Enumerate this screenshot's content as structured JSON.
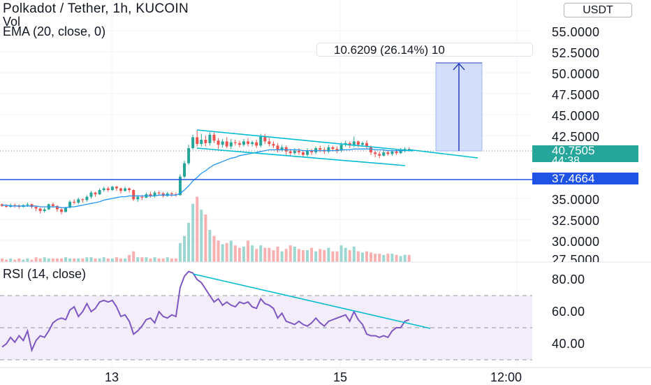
{
  "legend": {
    "title": "Polkadot / Tether, 1h, KUCOIN",
    "vol": "Vol",
    "ema": "EMA (20, close, 0)"
  },
  "rsi_legend": "RSI (14, close)",
  "currency_button": "USDT",
  "price_axis": [
    "55.0000",
    "52.5000",
    "50.0000",
    "47.5000",
    "45.0000",
    "42.5000",
    "35.0000",
    "32.5000",
    "30.0000",
    "27.5000"
  ],
  "rsi_axis": [
    "80.00",
    "60.00",
    "40.00"
  ],
  "time_axis": [
    "13",
    "15",
    "12:00"
  ],
  "last_price": {
    "value": "40.7505",
    "countdown": "44:38"
  },
  "horizontal_level": "37.4664",
  "measure": {
    "label": "10.6209 (26.14%) 10"
  },
  "colors": {
    "up": "#26a69a",
    "down": "#ef5350",
    "ema": "#2196f3",
    "trendline": "#00bcd4",
    "level": "#1e53e5",
    "rsi": "#7e57c2",
    "measure_fill": "#cfdcfa"
  },
  "chart_data": {
    "type": "candlestick",
    "title": "Polkadot / Tether, 1h, KUCOIN",
    "y_range": [
      27.5,
      57.5
    ],
    "candles": [
      [
        34.3,
        34.1,
        34.4,
        34.0
      ],
      [
        34.1,
        34.0,
        34.3,
        33.9
      ],
      [
        34.0,
        34.2,
        34.4,
        33.9
      ],
      [
        34.2,
        34.1,
        34.4,
        33.9
      ],
      [
        34.1,
        34.0,
        34.3,
        33.8
      ],
      [
        34.0,
        34.2,
        34.3,
        33.9
      ],
      [
        34.2,
        34.3,
        34.5,
        34.0
      ],
      [
        34.3,
        34.0,
        34.4,
        33.8
      ],
      [
        34.0,
        33.8,
        34.1,
        33.5
      ],
      [
        33.8,
        33.5,
        33.9,
        33.2
      ],
      [
        33.5,
        33.7,
        33.9,
        33.3
      ],
      [
        33.7,
        34.3,
        34.4,
        33.6
      ],
      [
        34.3,
        34.1,
        34.5,
        33.9
      ],
      [
        34.1,
        33.7,
        34.2,
        33.4
      ],
      [
        33.7,
        33.4,
        33.8,
        33.1
      ],
      [
        33.4,
        33.9,
        34.0,
        33.3
      ],
      [
        33.9,
        34.6,
        34.8,
        33.8
      ],
      [
        34.6,
        34.5,
        34.9,
        34.3
      ],
      [
        34.5,
        34.9,
        35.1,
        34.3
      ],
      [
        34.9,
        34.8,
        35.0,
        34.5
      ],
      [
        34.8,
        35.2,
        35.4,
        34.6
      ],
      [
        35.2,
        35.7,
        35.9,
        35.0
      ],
      [
        35.7,
        35.5,
        35.8,
        35.2
      ],
      [
        35.5,
        36.0,
        36.2,
        35.4
      ],
      [
        36.0,
        36.2,
        36.4,
        35.8
      ],
      [
        36.2,
        36.0,
        36.4,
        35.8
      ],
      [
        36.0,
        36.4,
        36.5,
        35.9
      ],
      [
        36.4,
        36.2,
        36.5,
        35.9
      ],
      [
        36.2,
        35.9,
        36.3,
        35.6
      ],
      [
        35.9,
        36.2,
        36.4,
        35.8
      ],
      [
        36.2,
        36.0,
        36.3,
        35.7
      ],
      [
        36.0,
        34.9,
        36.1,
        34.7
      ],
      [
        34.9,
        35.2,
        35.4,
        34.6
      ],
      [
        35.2,
        35.1,
        35.4,
        34.8
      ],
      [
        35.1,
        35.5,
        35.7,
        35.0
      ],
      [
        35.5,
        35.3,
        35.8,
        35.1
      ],
      [
        35.3,
        35.7,
        35.9,
        35.1
      ],
      [
        35.7,
        35.6,
        35.9,
        35.3
      ],
      [
        35.6,
        35.3,
        35.8,
        35.1
      ],
      [
        35.3,
        35.6,
        35.8,
        35.2
      ],
      [
        35.6,
        35.5,
        35.8,
        35.2
      ],
      [
        35.5,
        35.4,
        35.7,
        35.2
      ],
      [
        35.4,
        37.6,
        37.9,
        35.3
      ],
      [
        37.6,
        39.2,
        39.5,
        37.4
      ],
      [
        39.2,
        41.0,
        41.4,
        39.0
      ],
      [
        41.0,
        42.3,
        42.6,
        40.8
      ],
      [
        42.3,
        41.5,
        43.1,
        41.2
      ],
      [
        41.5,
        42.0,
        42.7,
        41.2
      ],
      [
        42.0,
        41.6,
        42.5,
        41.2
      ],
      [
        41.6,
        42.6,
        42.9,
        41.3
      ],
      [
        42.6,
        41.9,
        42.9,
        41.6
      ],
      [
        41.9,
        41.4,
        42.2,
        40.9
      ],
      [
        41.4,
        41.8,
        42.1,
        41.1
      ],
      [
        41.8,
        41.2,
        42.3,
        41.0
      ],
      [
        41.2,
        41.7,
        42.1,
        40.9
      ],
      [
        41.7,
        41.6,
        42.0,
        41.3
      ],
      [
        41.6,
        41.4,
        41.9,
        41.1
      ],
      [
        41.4,
        41.8,
        42.1,
        41.2
      ],
      [
        41.8,
        41.5,
        42.2,
        41.2
      ],
      [
        41.5,
        41.7,
        41.9,
        41.2
      ],
      [
        41.7,
        41.3,
        42.0,
        41.0
      ],
      [
        41.3,
        42.4,
        42.7,
        41.1
      ],
      [
        42.4,
        41.8,
        42.7,
        41.5
      ],
      [
        41.8,
        41.5,
        42.2,
        41.2
      ],
      [
        41.5,
        41.3,
        41.8,
        41.0
      ],
      [
        41.3,
        40.8,
        41.6,
        40.5
      ],
      [
        40.8,
        41.1,
        41.4,
        40.6
      ],
      [
        41.1,
        40.6,
        41.3,
        40.2
      ],
      [
        40.6,
        40.4,
        40.9,
        40.1
      ],
      [
        40.4,
        40.7,
        41.0,
        40.2
      ],
      [
        40.7,
        40.5,
        41.0,
        40.2
      ],
      [
        40.5,
        40.2,
        40.8,
        39.9
      ],
      [
        40.2,
        40.7,
        41.0,
        40.0
      ],
      [
        40.7,
        40.5,
        40.9,
        40.2
      ],
      [
        40.5,
        41.0,
        41.2,
        40.3
      ],
      [
        41.0,
        40.8,
        41.3,
        40.5
      ],
      [
        40.8,
        40.6,
        41.1,
        40.3
      ],
      [
        40.6,
        41.1,
        41.4,
        40.4
      ],
      [
        41.1,
        40.9,
        41.3,
        40.6
      ],
      [
        40.9,
        40.7,
        41.2,
        40.4
      ],
      [
        40.7,
        41.4,
        41.7,
        40.5
      ],
      [
        41.4,
        41.6,
        41.9,
        41.2
      ],
      [
        41.6,
        41.3,
        41.8,
        41.0
      ],
      [
        41.3,
        41.8,
        42.4,
        41.1
      ],
      [
        41.8,
        41.4,
        41.9,
        41.1
      ],
      [
        41.4,
        41.6,
        41.8,
        41.2
      ],
      [
        41.6,
        41.2,
        41.9,
        40.9
      ],
      [
        41.2,
        40.5,
        41.3,
        40.2
      ],
      [
        40.5,
        40.3,
        40.7,
        39.9
      ],
      [
        40.3,
        40.1,
        40.6,
        39.8
      ],
      [
        40.1,
        40.5,
        40.8,
        40.0
      ],
      [
        40.5,
        40.3,
        40.7,
        40.1
      ],
      [
        40.3,
        40.6,
        40.8,
        40.1
      ],
      [
        40.6,
        40.4,
        40.8,
        40.2
      ],
      [
        40.4,
        40.7,
        41.0,
        40.3
      ],
      [
        40.7,
        40.9,
        41.1,
        40.5
      ],
      [
        40.9,
        40.75,
        41.1,
        40.6
      ]
    ],
    "volume": [
      3,
      2,
      3,
      2,
      3,
      2,
      3,
      2,
      4,
      3,
      4,
      3,
      3,
      3,
      3,
      4,
      3,
      3,
      3,
      3,
      4,
      4,
      3,
      3,
      4,
      3,
      3,
      4,
      3,
      3,
      6,
      9,
      4,
      4,
      4,
      3,
      4,
      3,
      3,
      4,
      3,
      3,
      16,
      22,
      33,
      49,
      55,
      44,
      40,
      27,
      22,
      18,
      15,
      16,
      18,
      14,
      12,
      13,
      18,
      14,
      11,
      14,
      12,
      12,
      10,
      13,
      9,
      11,
      14,
      13,
      11,
      10,
      10,
      12,
      9,
      11,
      10,
      12,
      9,
      9,
      14,
      12,
      10,
      13,
      9,
      8,
      9,
      8,
      7,
      7,
      6,
      7,
      7,
      6,
      5,
      6,
      6
    ],
    "ema20": [
      34.2,
      34.2,
      34.1,
      34.1,
      34.1,
      34.1,
      34.1,
      34.1,
      34.1,
      34.0,
      34.0,
      34.0,
      34.0,
      34.0,
      33.9,
      33.9,
      34.0,
      34.0,
      34.1,
      34.2,
      34.3,
      34.4,
      34.5,
      34.6,
      34.8,
      34.9,
      35.0,
      35.1,
      35.2,
      35.2,
      35.3,
      35.3,
      35.3,
      35.3,
      35.3,
      35.3,
      35.3,
      35.4,
      35.4,
      35.4,
      35.4,
      35.4,
      35.6,
      36.0,
      36.5,
      37.1,
      37.5,
      38.0,
      38.3,
      38.7,
      39.0,
      39.2,
      39.4,
      39.6,
      39.8,
      39.9,
      40.1,
      40.2,
      40.3,
      40.4,
      40.5,
      40.6,
      40.7,
      40.8,
      40.8,
      40.8,
      40.8,
      40.8,
      40.8,
      40.8,
      40.8,
      40.7,
      40.7,
      40.7,
      40.7,
      40.7,
      40.7,
      40.7,
      40.7,
      40.7,
      40.8,
      40.8,
      40.8,
      40.9,
      40.9,
      40.9,
      40.9,
      40.9,
      40.8,
      40.8,
      40.8,
      40.7,
      40.7,
      40.7,
      40.7,
      40.7,
      40.7
    ],
    "rsi14": [
      38,
      40,
      44,
      41,
      45,
      42,
      48,
      36,
      42,
      45,
      44,
      48,
      53,
      55,
      56,
      55,
      61,
      63,
      57,
      60,
      65,
      60,
      62,
      66,
      67,
      66,
      67,
      63,
      57,
      58,
      54,
      46,
      48,
      51,
      55,
      56,
      53,
      60,
      57,
      56,
      58,
      57,
      75,
      82,
      85,
      84,
      80,
      78,
      74,
      70,
      66,
      68,
      64,
      66,
      64,
      63,
      66,
      65,
      66,
      63,
      62,
      68,
      65,
      64,
      62,
      56,
      59,
      54,
      53,
      52,
      54,
      52,
      51,
      53,
      56,
      53,
      51,
      54,
      55,
      56,
      57,
      58,
      54,
      60,
      55,
      52,
      46,
      45,
      45,
      44,
      45,
      44,
      48,
      50,
      50,
      54,
      55
    ],
    "rsi_range": [
      25,
      95
    ]
  }
}
